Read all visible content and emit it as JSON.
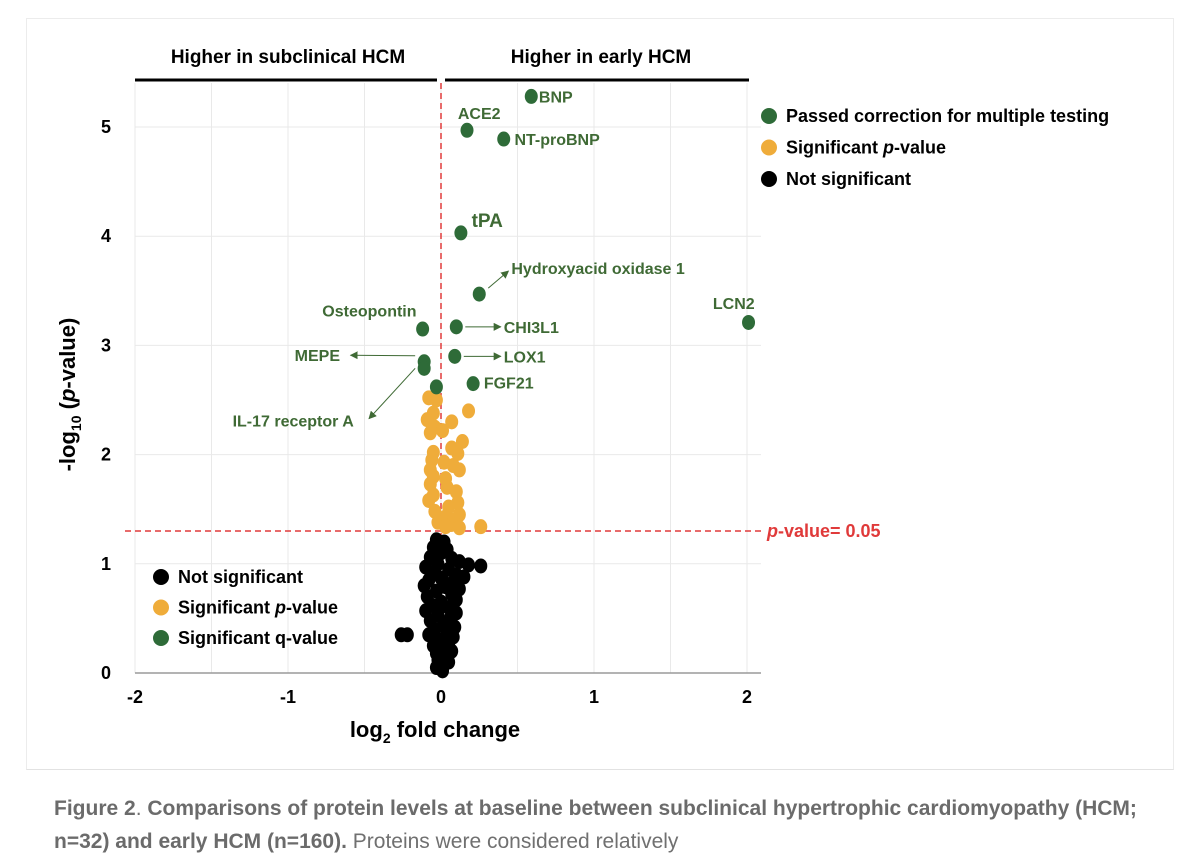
{
  "chart_data": {
    "type": "scatter",
    "title": "",
    "xlabel_main": "log",
    "xlabel_sub": "2",
    "xlabel_rest": " fold change",
    "ylabel_pre": "-log",
    "ylabel_sub": "10",
    "ylabel_open": " (",
    "ylabel_italic": "p",
    "ylabel_rest": "-value)",
    "xlim": [
      -2,
      2
    ],
    "ylim": [
      0,
      5.45
    ],
    "xticks": [
      -2,
      -1,
      0,
      1,
      2
    ],
    "xtick_labels": [
      "-2",
      "-1",
      "0",
      "1",
      "2"
    ],
    "yticks": [
      0,
      1,
      2,
      3,
      4,
      5
    ],
    "ytick_labels": [
      "0",
      "1",
      "2",
      "3",
      "4",
      "5"
    ],
    "region_left": "Higher in subclinical HCM",
    "region_right": "Higher in early HCM",
    "threshold": {
      "y": 1.3,
      "label_italic": "p",
      "label_rest": "-value= 0.05",
      "color": "#e03a3a"
    },
    "colors": {
      "q": "#2e6b38",
      "p": "#efac3a",
      "ns": "#000000",
      "label": "#3f6a35"
    },
    "legend_top": [
      {
        "color_key": "q",
        "text": "Passed correction for multiple testing",
        "italic": "",
        "rest": ""
      },
      {
        "color_key": "p",
        "text": "Significant ",
        "italic": "p",
        "rest": "-value"
      },
      {
        "color_key": "ns",
        "text": "Not significant",
        "italic": "",
        "rest": ""
      }
    ],
    "legend_bottom": [
      {
        "color_key": "ns",
        "text": "Not significant",
        "italic": "",
        "rest": ""
      },
      {
        "color_key": "p",
        "text": "Significant ",
        "italic": "p",
        "rest": "-value"
      },
      {
        "color_key": "q",
        "text": "Significant q-value",
        "italic": "",
        "rest": ""
      }
    ],
    "series": [
      {
        "name": "Significant q-value",
        "color_key": "q",
        "points": [
          {
            "label": "BNP",
            "x": 0.59,
            "y": 5.28
          },
          {
            "label": "ACE2",
            "x": 0.17,
            "y": 4.97
          },
          {
            "label": "NT-proBNP",
            "x": 0.41,
            "y": 4.89
          },
          {
            "label": "tPA",
            "x": 0.13,
            "y": 4.03
          },
          {
            "label": "Hydroxyacid oxidase 1",
            "x": 0.25,
            "y": 3.47
          },
          {
            "label": "LCN2",
            "x": 2.01,
            "y": 3.21
          },
          {
            "label": "Osteopontin",
            "x": -0.12,
            "y": 3.15
          },
          {
            "label": "CHI3L1",
            "x": 0.1,
            "y": 3.17
          },
          {
            "label": "MEPE",
            "x": -0.11,
            "y": 2.85
          },
          {
            "label": "LOX1",
            "x": 0.09,
            "y": 2.9
          },
          {
            "label": "IL-17 receptor A",
            "x": -0.11,
            "y": 2.79
          },
          {
            "label": "FGF21",
            "x": 0.21,
            "y": 2.65
          },
          {
            "label": "",
            "x": -0.03,
            "y": 2.62
          }
        ]
      },
      {
        "name": "Significant p-value",
        "color_key": "p",
        "points": [
          {
            "x": -0.08,
            "y": 2.52
          },
          {
            "x": -0.03,
            "y": 2.5
          },
          {
            "x": 0.18,
            "y": 2.4
          },
          {
            "x": -0.05,
            "y": 2.38
          },
          {
            "x": -0.09,
            "y": 2.32
          },
          {
            "x": 0.07,
            "y": 2.3
          },
          {
            "x": -0.04,
            "y": 2.25
          },
          {
            "x": 0.01,
            "y": 2.22
          },
          {
            "x": -0.07,
            "y": 2.2
          },
          {
            "x": 0.14,
            "y": 2.12
          },
          {
            "x": 0.07,
            "y": 2.06
          },
          {
            "x": -0.05,
            "y": 2.02
          },
          {
            "x": 0.11,
            "y": 2.01
          },
          {
            "x": -0.06,
            "y": 1.95
          },
          {
            "x": 0.02,
            "y": 1.93
          },
          {
            "x": 0.08,
            "y": 1.9
          },
          {
            "x": -0.07,
            "y": 1.86
          },
          {
            "x": 0.12,
            "y": 1.86
          },
          {
            "x": -0.05,
            "y": 1.8
          },
          {
            "x": 0.03,
            "y": 1.78
          },
          {
            "x": -0.07,
            "y": 1.73
          },
          {
            "x": 0.04,
            "y": 1.7
          },
          {
            "x": 0.1,
            "y": 1.66
          },
          {
            "x": -0.05,
            "y": 1.63
          },
          {
            "x": -0.08,
            "y": 1.58
          },
          {
            "x": 0.11,
            "y": 1.56
          },
          {
            "x": 0.05,
            "y": 1.52
          },
          {
            "x": -0.04,
            "y": 1.48
          },
          {
            "x": 0.12,
            "y": 1.45
          },
          {
            "x": 0.03,
            "y": 1.43
          },
          {
            "x": 0.08,
            "y": 1.4
          },
          {
            "x": -0.02,
            "y": 1.38
          },
          {
            "x": 0.07,
            "y": 1.36
          },
          {
            "x": 0.26,
            "y": 1.34
          },
          {
            "x": 0.03,
            "y": 1.34
          },
          {
            "x": 0.12,
            "y": 1.33
          }
        ]
      },
      {
        "name": "Not significant",
        "color_key": "ns",
        "points": [
          {
            "x": -0.03,
            "y": 1.22
          },
          {
            "x": 0.02,
            "y": 1.2
          },
          {
            "x": -0.05,
            "y": 1.15
          },
          {
            "x": 0.04,
            "y": 1.13
          },
          {
            "x": 0.0,
            "y": 1.1
          },
          {
            "x": -0.07,
            "y": 1.06
          },
          {
            "x": 0.07,
            "y": 1.05
          },
          {
            "x": 0.12,
            "y": 1.02
          },
          {
            "x": -0.02,
            "y": 1.0
          },
          {
            "x": 0.18,
            "y": 0.99
          },
          {
            "x": 0.26,
            "y": 0.98
          },
          {
            "x": -0.1,
            "y": 0.97
          },
          {
            "x": 0.05,
            "y": 0.95
          },
          {
            "x": -0.04,
            "y": 0.92
          },
          {
            "x": 0.1,
            "y": 0.9
          },
          {
            "x": 0.15,
            "y": 0.88
          },
          {
            "x": 0.0,
            "y": 0.87
          },
          {
            "x": -0.08,
            "y": 0.85
          },
          {
            "x": 0.08,
            "y": 0.83
          },
          {
            "x": -0.11,
            "y": 0.8
          },
          {
            "x": 0.03,
            "y": 0.79
          },
          {
            "x": 0.12,
            "y": 0.77
          },
          {
            "x": -0.03,
            "y": 0.75
          },
          {
            "x": 0.07,
            "y": 0.72
          },
          {
            "x": -0.09,
            "y": 0.7
          },
          {
            "x": 0.1,
            "y": 0.67
          },
          {
            "x": 0.0,
            "y": 0.65
          },
          {
            "x": -0.06,
            "y": 0.62
          },
          {
            "x": 0.05,
            "y": 0.6
          },
          {
            "x": -0.1,
            "y": 0.57
          },
          {
            "x": 0.1,
            "y": 0.55
          },
          {
            "x": -0.02,
            "y": 0.53
          },
          {
            "x": 0.06,
            "y": 0.5
          },
          {
            "x": -0.07,
            "y": 0.48
          },
          {
            "x": 0.02,
            "y": 0.45
          },
          {
            "x": 0.09,
            "y": 0.42
          },
          {
            "x": -0.04,
            "y": 0.4
          },
          {
            "x": 0.04,
            "y": 0.37
          },
          {
            "x": -0.08,
            "y": 0.35
          },
          {
            "x": 0.08,
            "y": 0.33
          },
          {
            "x": -0.01,
            "y": 0.3
          },
          {
            "x": 0.05,
            "y": 0.27
          },
          {
            "x": -0.05,
            "y": 0.25
          },
          {
            "x": 0.02,
            "y": 0.22
          },
          {
            "x": 0.07,
            "y": 0.2
          },
          {
            "x": -0.03,
            "y": 0.18
          },
          {
            "x": 0.04,
            "y": 0.15
          },
          {
            "x": -0.02,
            "y": 0.12
          },
          {
            "x": 0.05,
            "y": 0.1
          },
          {
            "x": 0.0,
            "y": 0.07
          },
          {
            "x": -0.03,
            "y": 0.05
          },
          {
            "x": 0.01,
            "y": 0.02
          },
          {
            "x": -0.01,
            "y": 0.6
          },
          {
            "x": 0.01,
            "y": 0.85
          },
          {
            "x": -0.26,
            "y": 0.35
          },
          {
            "x": -0.22,
            "y": 0.35
          }
        ]
      }
    ],
    "annotations": [
      {
        "label": "BNP",
        "tx": 0.64,
        "ty": 5.28,
        "anchor": "start",
        "arrow": false
      },
      {
        "label": "ACE2",
        "tx": 0.11,
        "ty": 5.13,
        "anchor": "start",
        "arrow": false
      },
      {
        "label": "NT-proBNP",
        "tx": 0.48,
        "ty": 4.89,
        "anchor": "start",
        "arrow": false
      },
      {
        "label": "tPA",
        "tx": 0.2,
        "ty": 4.14,
        "anchor": "start",
        "arrow": false,
        "big": true
      },
      {
        "label": "Hydroxyacid oxidase 1",
        "tx": 0.46,
        "ty": 3.71,
        "anchor": "start",
        "arrow": true,
        "ax": 0.44,
        "ay": 3.68
      },
      {
        "label": "LCN2",
        "tx": 2.01,
        "ty": 3.39,
        "anchor": "end",
        "arrow": false,
        "dx": 0.04
      },
      {
        "label": "Osteopontin",
        "tx": -0.16,
        "ty": 3.32,
        "anchor": "end",
        "arrow": false
      },
      {
        "label": "CHI3L1",
        "tx": 0.41,
        "ty": 3.17,
        "anchor": "start",
        "arrow": true,
        "ax": 0.39,
        "ay": 3.17
      },
      {
        "label": "MEPE",
        "tx": -0.66,
        "ty": 2.91,
        "anchor": "end",
        "arrow": true,
        "ax": -0.59,
        "ay": 2.91
      },
      {
        "label": "LOX1",
        "tx": 0.41,
        "ty": 2.9,
        "anchor": "start",
        "arrow": true,
        "ax": 0.39,
        "ay": 2.9
      },
      {
        "label": "IL-17 receptor A",
        "tx": -0.57,
        "ty": 2.31,
        "anchor": "end",
        "arrow": true,
        "ax": -0.47,
        "ay": 2.33
      },
      {
        "label": "FGF21",
        "tx": 0.28,
        "ty": 2.66,
        "anchor": "start",
        "arrow": false
      }
    ]
  },
  "caption": {
    "fig": "Figure 2",
    "dot": ". ",
    "bold": "Comparisons of protein levels at baseline between subclinical hypertrophic cardiomyopathy (HCM; n=32) and early HCM (n=160).",
    "plain": " Proteins were considered relatively"
  }
}
